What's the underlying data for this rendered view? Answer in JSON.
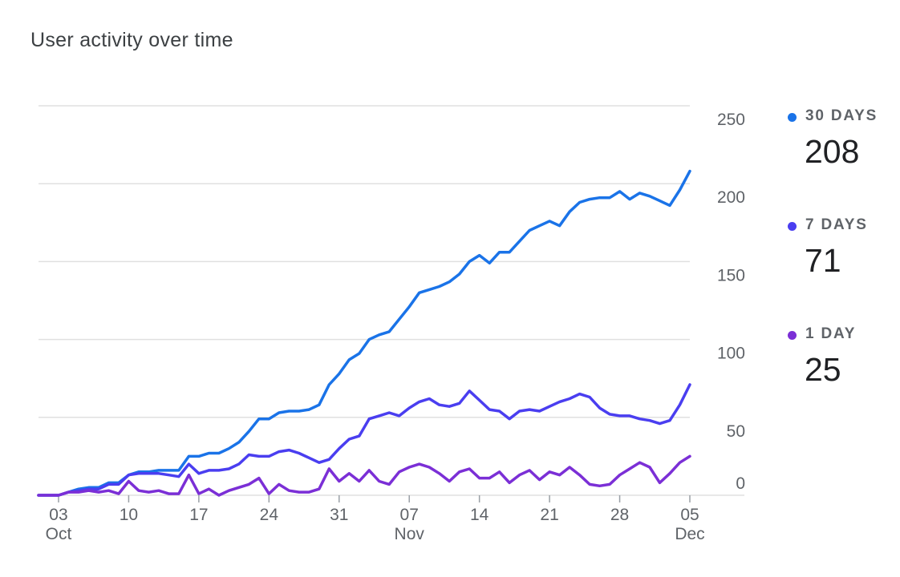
{
  "title": "User activity over time",
  "chart_data": {
    "type": "line",
    "title": "User activity over time",
    "ylim": [
      0,
      250
    ],
    "yticks": [
      0,
      50,
      100,
      150,
      200,
      250
    ],
    "x_start_day": 1,
    "x_end_day": 66,
    "xticks": [
      {
        "day": 3,
        "label": "03",
        "sublabel": "Oct"
      },
      {
        "day": 10,
        "label": "10",
        "sublabel": ""
      },
      {
        "day": 17,
        "label": "17",
        "sublabel": ""
      },
      {
        "day": 24,
        "label": "24",
        "sublabel": ""
      },
      {
        "day": 31,
        "label": "31",
        "sublabel": ""
      },
      {
        "day": 38,
        "label": "07",
        "sublabel": "Nov"
      },
      {
        "day": 45,
        "label": "14",
        "sublabel": ""
      },
      {
        "day": 52,
        "label": "21",
        "sublabel": ""
      },
      {
        "day": 59,
        "label": "28",
        "sublabel": ""
      },
      {
        "day": 66,
        "label": "05",
        "sublabel": "Dec"
      }
    ],
    "series": [
      {
        "name": "30 DAYS",
        "color": "#1a73e8",
        "latest": "208",
        "values": [
          0,
          0,
          0,
          2,
          4,
          5,
          5,
          8,
          8,
          13,
          15,
          15,
          16,
          16,
          16,
          25,
          25,
          27,
          27,
          30,
          34,
          41,
          49,
          49,
          53,
          54,
          54,
          55,
          58,
          71,
          78,
          87,
          91,
          100,
          103,
          105,
          113,
          121,
          130,
          132,
          134,
          137,
          142,
          150,
          154,
          149,
          156,
          156,
          163,
          170,
          173,
          176,
          173,
          182,
          188,
          190,
          191,
          191,
          195,
          190,
          194,
          192,
          189,
          186,
          196,
          208
        ]
      },
      {
        "name": "7 DAYS",
        "color": "#4a3ef0",
        "latest": "71",
        "values": [
          0,
          0,
          0,
          2,
          3,
          4,
          4,
          7,
          7,
          13,
          14,
          14,
          14,
          13,
          12,
          20,
          14,
          16,
          16,
          17,
          20,
          26,
          25,
          25,
          28,
          29,
          27,
          24,
          21,
          23,
          30,
          36,
          38,
          49,
          51,
          53,
          51,
          56,
          60,
          62,
          58,
          57,
          59,
          67,
          61,
          55,
          54,
          49,
          54,
          55,
          54,
          57,
          60,
          62,
          65,
          63,
          56,
          52,
          51,
          51,
          49,
          48,
          46,
          48,
          58,
          71
        ]
      },
      {
        "name": "1 DAY",
        "color": "#7b2fd6",
        "latest": "25",
        "values": [
          0,
          0,
          0,
          2,
          2,
          3,
          2,
          3,
          1,
          9,
          3,
          2,
          3,
          1,
          1,
          13,
          1,
          4,
          0,
          3,
          5,
          7,
          11,
          1,
          7,
          3,
          2,
          2,
          4,
          17,
          9,
          14,
          9,
          16,
          9,
          7,
          15,
          18,
          20,
          18,
          14,
          9,
          15,
          17,
          11,
          11,
          15,
          8,
          13,
          16,
          10,
          15,
          13,
          18,
          13,
          7,
          6,
          7,
          13,
          17,
          21,
          18,
          8,
          14,
          21,
          25
        ]
      }
    ]
  }
}
